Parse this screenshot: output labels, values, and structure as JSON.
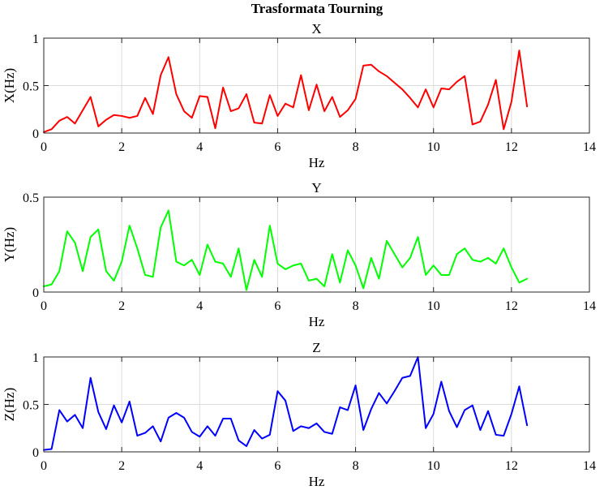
{
  "figure": {
    "title": "Trasformata Tourning"
  },
  "chart_data": [
    {
      "type": "line",
      "title": "X",
      "xlabel": "Hz",
      "ylabel": "X(Hz)",
      "xlim": [
        0,
        14
      ],
      "ylim": [
        0,
        1
      ],
      "xticks": [
        0,
        2,
        4,
        6,
        8,
        10,
        12,
        14
      ],
      "yticks": [
        0,
        0.5,
        1
      ],
      "grid": true,
      "color": "#ff0000",
      "series": [
        {
          "x": [
            0,
            0.2,
            0.4,
            0.6,
            0.8,
            1.0,
            1.2,
            1.4,
            1.6,
            1.8,
            2.0,
            2.2,
            2.4,
            2.6,
            2.8,
            3.0,
            3.2,
            3.4,
            3.6,
            3.8,
            4.0,
            4.2,
            4.4,
            4.6,
            4.8,
            5.0,
            5.2,
            5.4,
            5.6,
            5.8,
            6.0,
            6.2,
            6.4,
            6.6,
            6.8,
            7.0,
            7.2,
            7.4,
            7.6,
            7.8,
            8.0,
            8.2,
            8.4,
            8.6,
            8.8,
            9.0,
            9.2,
            9.4,
            9.6,
            9.8,
            10.0,
            10.2,
            10.4,
            10.6,
            10.8,
            11.0,
            11.2,
            11.4,
            11.6,
            11.8,
            12.0,
            12.2,
            12.4
          ],
          "values": [
            0.01,
            0.04,
            0.13,
            0.17,
            0.1,
            0.24,
            0.38,
            0.07,
            0.14,
            0.19,
            0.18,
            0.16,
            0.18,
            0.37,
            0.2,
            0.61,
            0.8,
            0.41,
            0.23,
            0.16,
            0.39,
            0.38,
            0.05,
            0.48,
            0.23,
            0.26,
            0.41,
            0.11,
            0.1,
            0.4,
            0.18,
            0.31,
            0.27,
            0.61,
            0.24,
            0.51,
            0.23,
            0.38,
            0.17,
            0.24,
            0.36,
            0.71,
            0.72,
            0.65,
            0.6,
            0.53,
            0.46,
            0.37,
            0.27,
            0.46,
            0.27,
            0.47,
            0.46,
            0.54,
            0.6,
            0.09,
            0.12,
            0.3,
            0.56,
            0.04,
            0.33,
            0.87,
            0.28
          ]
        }
      ]
    },
    {
      "type": "line",
      "title": "Y",
      "xlabel": "Hz",
      "ylabel": "Y(Hz)",
      "xlim": [
        0,
        14
      ],
      "ylim": [
        0,
        0.5
      ],
      "xticks": [
        0,
        2,
        4,
        6,
        8,
        10,
        12,
        14
      ],
      "yticks": [
        0,
        0.5
      ],
      "grid": true,
      "color": "#00ff00",
      "series": [
        {
          "x": [
            0,
            0.2,
            0.4,
            0.6,
            0.8,
            1.0,
            1.2,
            1.4,
            1.6,
            1.8,
            2.0,
            2.2,
            2.4,
            2.6,
            2.8,
            3.0,
            3.2,
            3.4,
            3.6,
            3.8,
            4.0,
            4.2,
            4.4,
            4.6,
            4.8,
            5.0,
            5.2,
            5.4,
            5.6,
            5.8,
            6.0,
            6.2,
            6.4,
            6.6,
            6.8,
            7.0,
            7.2,
            7.4,
            7.6,
            7.8,
            8.0,
            8.2,
            8.4,
            8.6,
            8.8,
            9.0,
            9.2,
            9.4,
            9.6,
            9.8,
            10.0,
            10.2,
            10.4,
            10.6,
            10.8,
            11.0,
            11.2,
            11.4,
            11.6,
            11.8,
            12.0,
            12.2,
            12.4
          ],
          "values": [
            0.03,
            0.04,
            0.11,
            0.32,
            0.26,
            0.11,
            0.29,
            0.33,
            0.11,
            0.06,
            0.16,
            0.35,
            0.23,
            0.09,
            0.08,
            0.34,
            0.43,
            0.16,
            0.14,
            0.17,
            0.09,
            0.25,
            0.16,
            0.15,
            0.08,
            0.23,
            0.01,
            0.17,
            0.08,
            0.35,
            0.15,
            0.12,
            0.14,
            0.15,
            0.06,
            0.07,
            0.03,
            0.2,
            0.05,
            0.22,
            0.14,
            0.02,
            0.18,
            0.07,
            0.27,
            0.2,
            0.13,
            0.18,
            0.29,
            0.09,
            0.14,
            0.09,
            0.09,
            0.2,
            0.23,
            0.17,
            0.16,
            0.18,
            0.15,
            0.23,
            0.13,
            0.05,
            0.07
          ]
        }
      ]
    },
    {
      "type": "line",
      "title": "Z",
      "xlabel": "Hz",
      "ylabel": "Z(Hz)",
      "xlim": [
        0,
        14
      ],
      "ylim": [
        0,
        1
      ],
      "xticks": [
        0,
        2,
        4,
        6,
        8,
        10,
        12,
        14
      ],
      "yticks": [
        0,
        0.5,
        1
      ],
      "grid": true,
      "color": "#0000ff",
      "series": [
        {
          "x": [
            0,
            0.2,
            0.4,
            0.6,
            0.8,
            1.0,
            1.2,
            1.4,
            1.6,
            1.8,
            2.0,
            2.2,
            2.4,
            2.6,
            2.8,
            3.0,
            3.2,
            3.4,
            3.6,
            3.8,
            4.0,
            4.2,
            4.4,
            4.6,
            4.8,
            5.0,
            5.2,
            5.4,
            5.6,
            5.8,
            6.0,
            6.2,
            6.4,
            6.6,
            6.8,
            7.0,
            7.2,
            7.4,
            7.6,
            7.8,
            8.0,
            8.2,
            8.4,
            8.6,
            8.8,
            9.0,
            9.2,
            9.4,
            9.6,
            9.8,
            10.0,
            10.2,
            10.4,
            10.6,
            10.8,
            11.0,
            11.2,
            11.4,
            11.6,
            11.8,
            12.0,
            12.2,
            12.4
          ],
          "values": [
            0.02,
            0.03,
            0.44,
            0.32,
            0.39,
            0.25,
            0.78,
            0.42,
            0.24,
            0.49,
            0.31,
            0.53,
            0.17,
            0.2,
            0.27,
            0.11,
            0.36,
            0.41,
            0.36,
            0.21,
            0.16,
            0.27,
            0.17,
            0.35,
            0.35,
            0.12,
            0.06,
            0.23,
            0.14,
            0.18,
            0.64,
            0.54,
            0.22,
            0.27,
            0.25,
            0.3,
            0.21,
            0.19,
            0.47,
            0.44,
            0.7,
            0.23,
            0.45,
            0.62,
            0.51,
            0.64,
            0.78,
            0.8,
            1.0,
            0.25,
            0.4,
            0.74,
            0.43,
            0.26,
            0.44,
            0.49,
            0.23,
            0.43,
            0.18,
            0.17,
            0.4,
            0.69,
            0.28
          ]
        }
      ]
    }
  ]
}
